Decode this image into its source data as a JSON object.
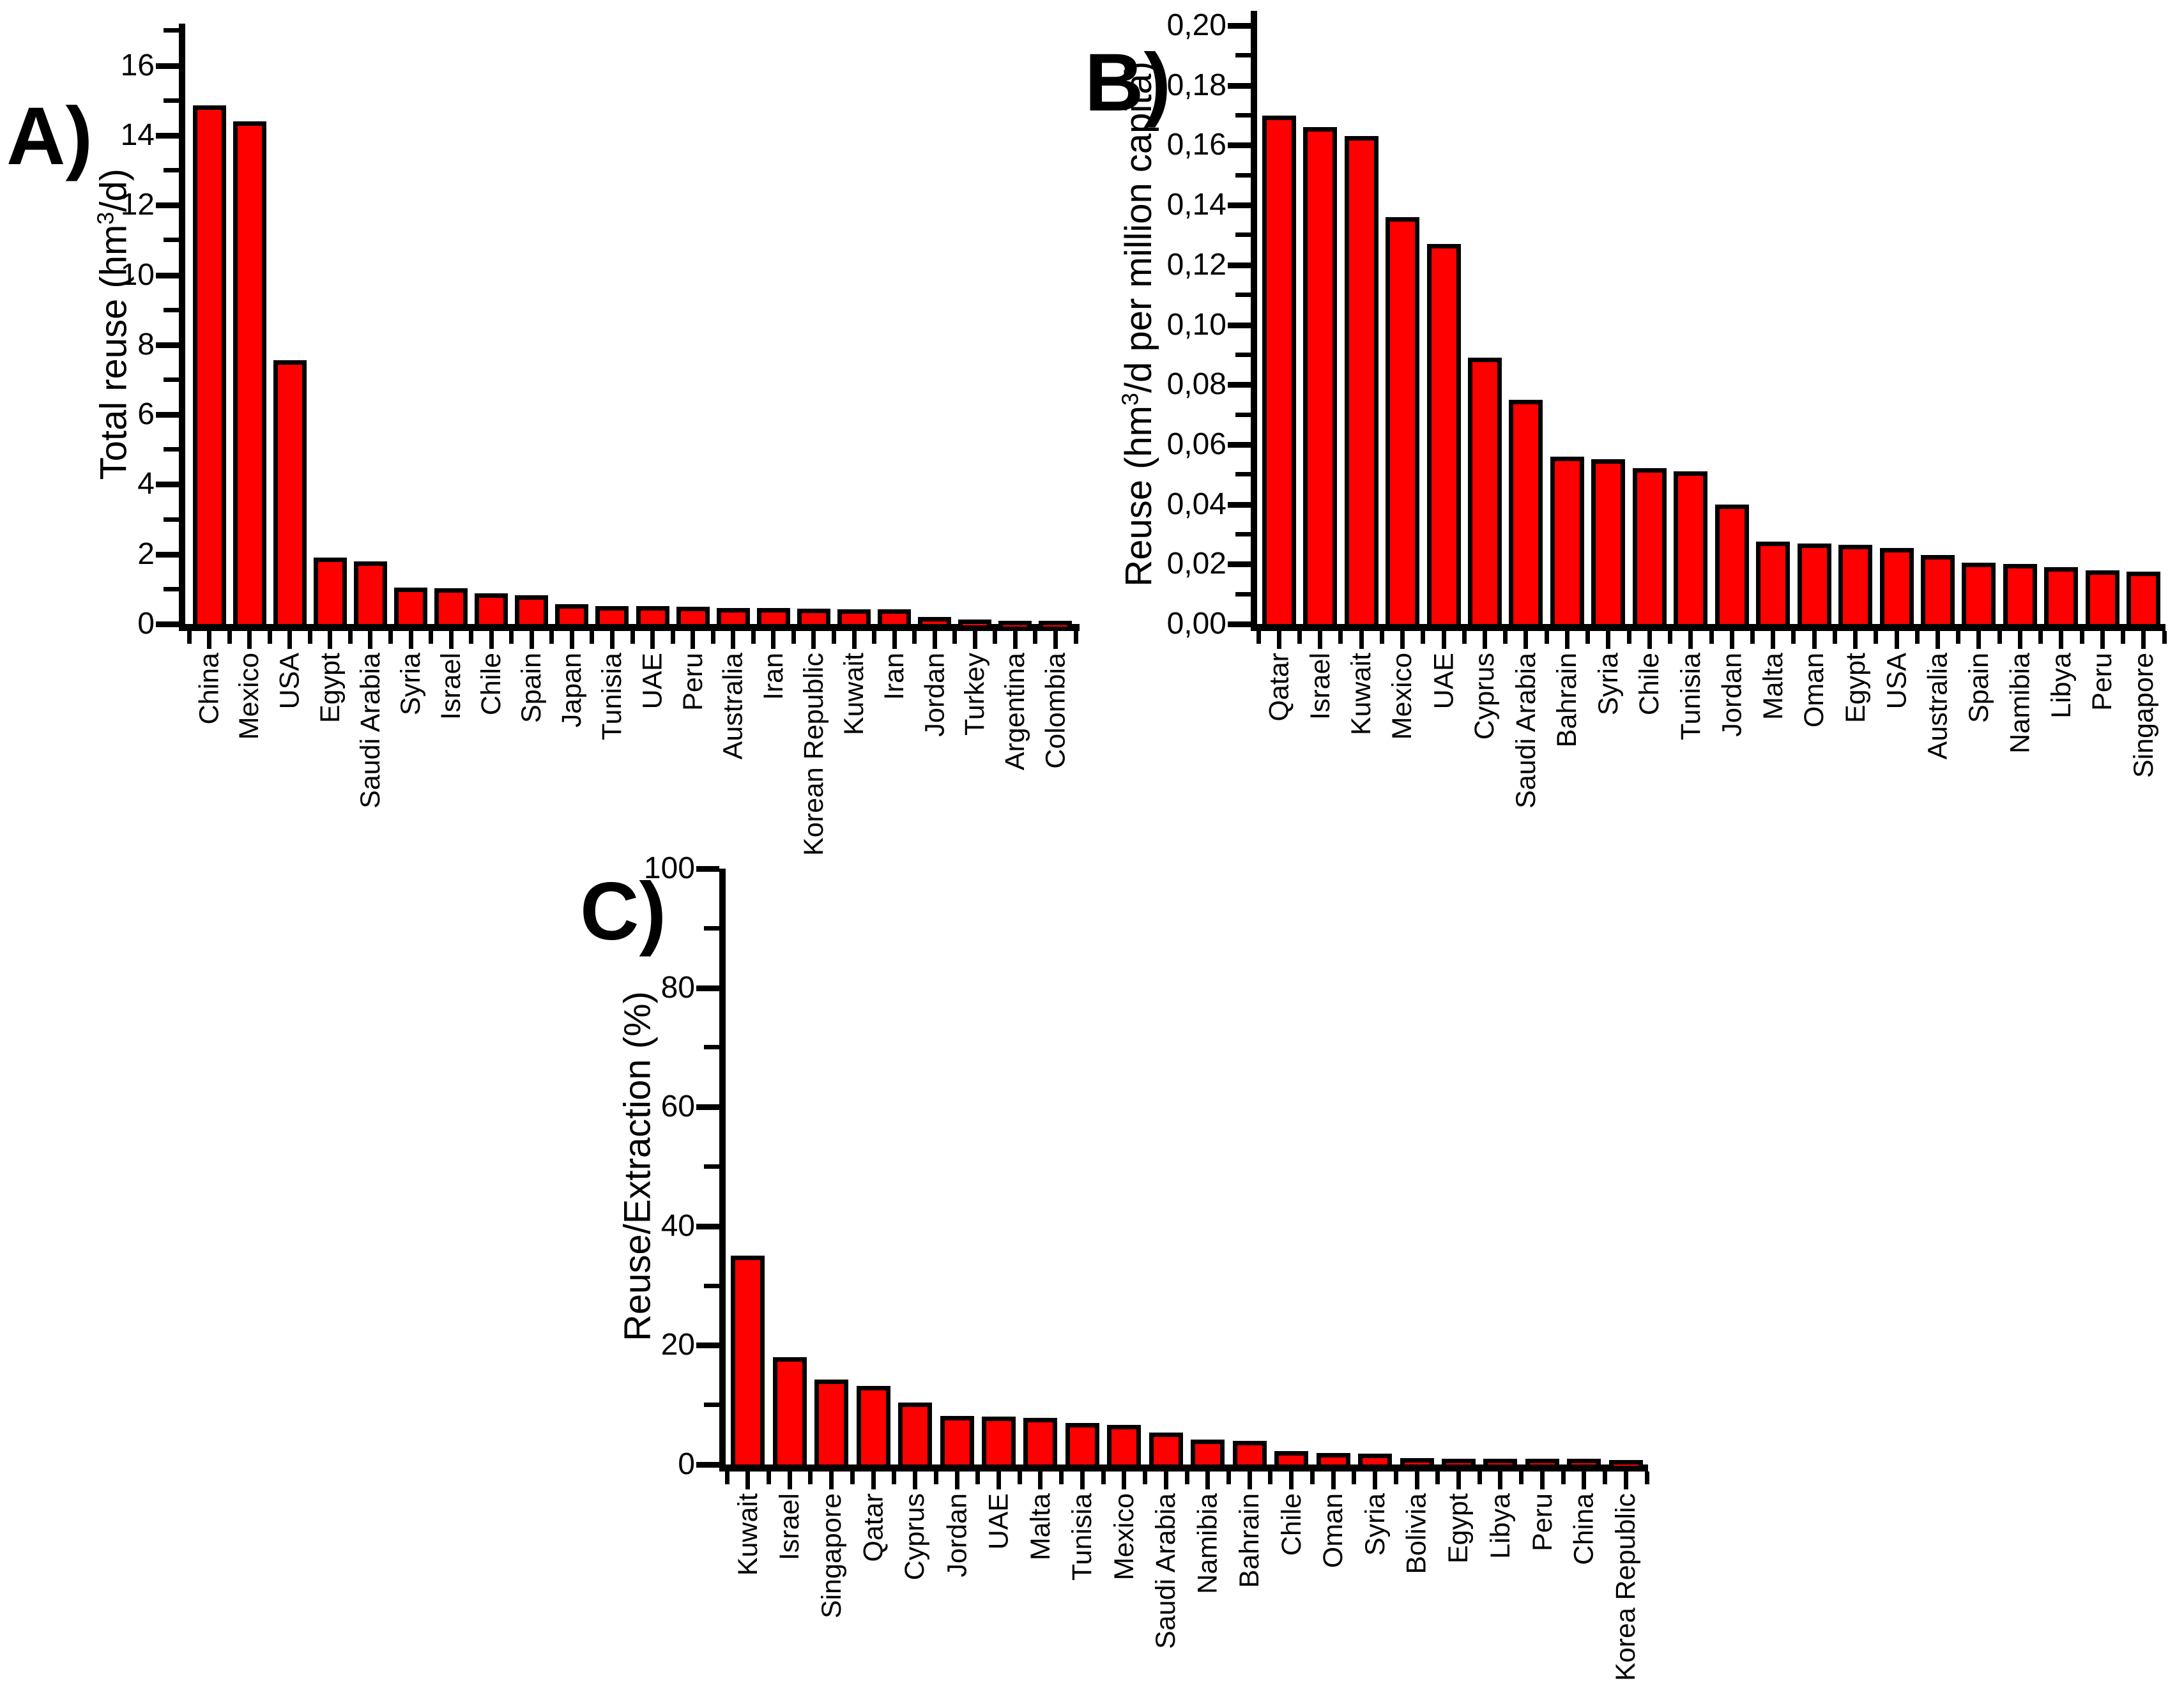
{
  "colors": {
    "bar_fill": "#ff0000",
    "bar_border": "#000000",
    "axis": "#000000",
    "text": "#000000",
    "background": "#ffffff"
  },
  "chart_data": [
    {
      "id": "A",
      "type": "bar",
      "panel_label": "A)",
      "ylabel": {
        "pre": "Total reuse (hm",
        "sup": "3",
        "post": "/d)"
      },
      "xlabel": "",
      "ylim": [
        0,
        17.2
      ],
      "grid": false,
      "legend": "none",
      "ytick_values": [
        0,
        2,
        4,
        6,
        8,
        10,
        12,
        14,
        16
      ],
      "ytick_labels": [
        "0",
        "2",
        "4",
        "6",
        "8",
        "10",
        "12",
        "14",
        "16"
      ],
      "categories": [
        "China",
        "Mexico",
        "USA",
        "Egypt",
        "Saudi Arabia",
        "Syria",
        "Israel",
        "Chile",
        "Spain",
        "Japan",
        "Tunisia",
        "UAE",
        "Peru",
        "Australia",
        "Iran",
        "Korean Republic",
        "Kuwait",
        "Iran",
        "Jordan",
        "Turkey",
        "Argentina",
        "Colombia"
      ],
      "values": [
        14.85,
        14.4,
        7.55,
        1.9,
        1.8,
        1.05,
        1.03,
        0.87,
        0.82,
        0.57,
        0.52,
        0.51,
        0.5,
        0.46,
        0.46,
        0.44,
        0.42,
        0.42,
        0.21,
        0.12,
        0.1,
        0.1
      ]
    },
    {
      "id": "B",
      "type": "bar",
      "panel_label": "B)",
      "ylabel": {
        "pre": "Reuse (hm",
        "sup": "3",
        "post": "/d per million capita)"
      },
      "xlabel": "",
      "ylim": [
        0,
        0.205
      ],
      "grid": false,
      "legend": "none",
      "ytick_values": [
        0.0,
        0.02,
        0.04,
        0.06,
        0.08,
        0.1,
        0.12,
        0.14,
        0.16,
        0.18,
        0.2
      ],
      "ytick_labels": [
        "0,00",
        "0,02",
        "0,04",
        "0,06",
        "0,08",
        "0,10",
        "0,12",
        "0,14",
        "0,16",
        "0,18",
        "0,20"
      ],
      "categories": [
        "Qatar",
        "Israel",
        "Kuwait",
        "Mexico",
        "UAE",
        "Cyprus",
        "Saudi Arabia",
        "Bahrain",
        "Syria",
        "Chile",
        "Tunisia",
        "Jordan",
        "Malta",
        "Oman",
        "Egypt",
        "USA",
        "Australia",
        "Spain",
        "Namibia",
        "Libya",
        "Peru",
        "Singapore"
      ],
      "values": [
        0.17,
        0.166,
        0.163,
        0.136,
        0.127,
        0.089,
        0.075,
        0.056,
        0.055,
        0.052,
        0.051,
        0.04,
        0.0275,
        0.027,
        0.0265,
        0.0255,
        0.023,
        0.0205,
        0.02,
        0.019,
        0.018,
        0.0175
      ]
    },
    {
      "id": "C",
      "type": "bar",
      "panel_label": "C)",
      "ylabel": {
        "pre": "Reuse/Extraction (%)",
        "sup": "",
        "post": ""
      },
      "xlabel": "",
      "ylim": [
        0,
        100
      ],
      "grid": false,
      "legend": "none",
      "ytick_values": [
        0,
        20,
        40,
        60,
        80,
        100
      ],
      "ytick_labels": [
        "0",
        "20",
        "40",
        "60",
        "80",
        "100"
      ],
      "categories": [
        "Kuwait",
        "Israel",
        "Singapore",
        "Qatar",
        "Cyprus",
        "Jordan",
        "UAE",
        "Malta",
        "Tunisia",
        "Mexico",
        "Saudi Arabia",
        "Namibia",
        "Bahrain",
        "Chile",
        "Oman",
        "Syria",
        "Bolivia",
        "Egypt",
        "Libya",
        "Peru",
        "China",
        "Korea Republic"
      ],
      "values": [
        35,
        18,
        14.3,
        13.2,
        10.4,
        8.1,
        8.0,
        7.8,
        7.0,
        6.6,
        5.4,
        4.2,
        4.0,
        2.3,
        1.9,
        1.85,
        1.1,
        1.0,
        0.95,
        0.95,
        0.95,
        0.8
      ]
    }
  ]
}
